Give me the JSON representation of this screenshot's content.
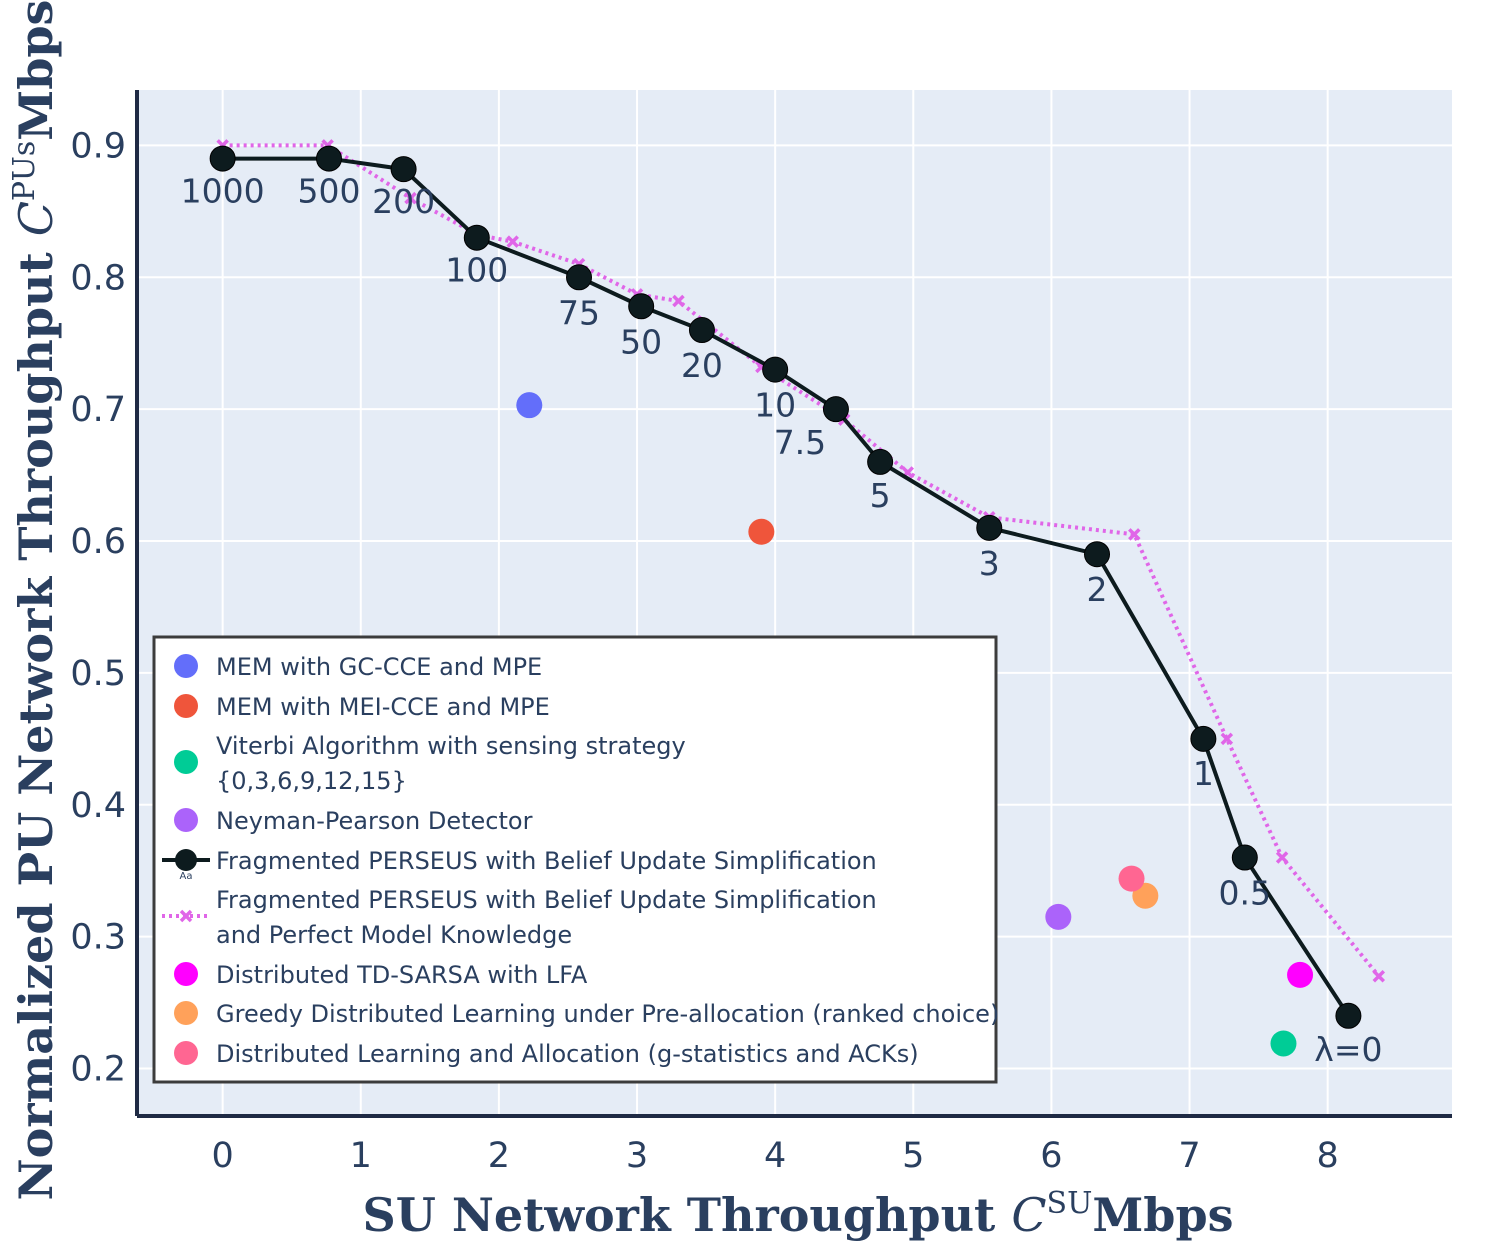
{
  "chart_data": {
    "type": "scatter",
    "xlabel": {
      "main": "SU Network Throughput ",
      "var": "C",
      "sup": "SU",
      "unit": "Mbps"
    },
    "ylabel": {
      "main": "Normalized PU Network Throughput ",
      "var": "C",
      "sup": "PUs",
      "unit": "Mbps"
    },
    "xlim": [
      -0.62,
      8.9
    ],
    "ylim": [
      0.164,
      0.942
    ],
    "xticks": [
      0,
      1,
      2,
      3,
      4,
      5,
      6,
      7,
      8
    ],
    "yticks": [
      0.2,
      0.3,
      0.4,
      0.5,
      0.6,
      0.7,
      0.8,
      0.9
    ],
    "ytick_labels": [
      "0.2",
      "0.3",
      "0.4",
      "0.5",
      "0.6",
      "0.7",
      "0.8",
      "0.9"
    ],
    "grid": true,
    "legend_position": "bottom-left",
    "series": [
      {
        "name": "MEM with GC-CCE and MPE",
        "mode": "markers",
        "color": "#636efa",
        "x": [
          2.22
        ],
        "y": [
          0.703
        ]
      },
      {
        "name": "MEM with MEI-CCE and MPE",
        "mode": "markers",
        "color": "#ef553b",
        "x": [
          3.9
        ],
        "y": [
          0.607
        ]
      },
      {
        "name": [
          "Viterbi Algorithm with sensing strategy",
          "{0,3,6,9,12,15}"
        ],
        "mode": "markers",
        "color": "#00cc96",
        "x": [
          7.68
        ],
        "y": [
          0.219
        ]
      },
      {
        "name": "Neyman-Pearson Detector",
        "mode": "markers",
        "color": "#ab63fa",
        "x": [
          6.05
        ],
        "y": [
          0.315
        ]
      },
      {
        "name": "Fragmented PERSEUS with Belief Update Simplification",
        "mode": "lines+markers+text",
        "color": "#0d1b1e",
        "x": [
          0.0,
          0.77,
          1.31,
          1.84,
          2.58,
          3.03,
          3.47,
          4.0,
          4.44,
          4.76,
          5.55,
          6.33,
          7.1,
          7.4,
          8.15
        ],
        "y": [
          0.89,
          0.89,
          0.882,
          0.83,
          0.8,
          0.778,
          0.76,
          0.73,
          0.7,
          0.66,
          0.61,
          0.59,
          0.45,
          0.36,
          0.24
        ],
        "labels": [
          "1000",
          "500",
          "200",
          "100",
          "75",
          "50",
          "20",
          "10",
          "7.5",
          "5",
          "3",
          "2",
          "1",
          "0.5",
          "λ=0"
        ]
      },
      {
        "name": [
          "Fragmented PERSEUS with Belief Update Simplification",
          "and Perfect Model Knowledge"
        ],
        "mode": "lines+markers",
        "color": "#e066e8",
        "x": [
          0.0,
          0.76,
          1.36,
          1.85,
          2.1,
          2.58,
          3.0,
          3.3,
          3.9,
          4.5,
          4.96,
          5.55,
          6.6,
          7.27,
          7.67,
          8.37
        ],
        "y": [
          0.9,
          0.9,
          0.86,
          0.832,
          0.827,
          0.81,
          0.787,
          0.782,
          0.732,
          0.692,
          0.652,
          0.618,
          0.605,
          0.45,
          0.36,
          0.27
        ]
      },
      {
        "name": "Distributed TD-SARSA with LFA",
        "mode": "markers",
        "color": "#ff00ff",
        "x": [
          7.8
        ],
        "y": [
          0.271
        ]
      },
      {
        "name": "Greedy Distributed Learning under Pre-allocation (ranked choice)",
        "mode": "markers",
        "color": "#ffa15a",
        "x": [
          6.68
        ],
        "y": [
          0.331
        ]
      },
      {
        "name": "Distributed Learning and Allocation (g-statistics and ACKs)",
        "mode": "markers",
        "color": "#ff6692",
        "x": [
          6.58
        ],
        "y": [
          0.344
        ]
      }
    ],
    "legend_icon_text": "Aa"
  }
}
